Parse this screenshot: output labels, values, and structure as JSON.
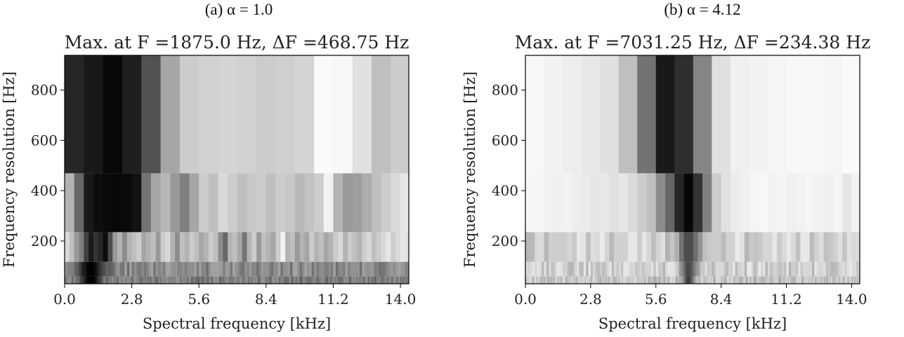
{
  "chart_data": [
    {
      "type": "heatmap",
      "panel_caption": "(a) α = 1.0",
      "title": "Max. at F =1875.0 Hz, ΔF =468.75 Hz",
      "xlabel": "Spectral frequency [kHz]",
      "ylabel": "Frequency resolution [Hz]",
      "xlim": [
        0,
        14.35
      ],
      "ylim": [
        30,
        938
      ],
      "x_ticks": [
        0.0,
        2.8,
        5.6,
        8.4,
        11.2,
        14.0
      ],
      "x_tick_labels": [
        "0.0",
        "2.8",
        "5.6",
        "8.4",
        "11.2",
        "14.0"
      ],
      "y_ticks": [
        200,
        400,
        600,
        800
      ],
      "y_tick_labels": [
        "200",
        "400",
        "600",
        "800"
      ],
      "colormap": "grayscale (dark = high)",
      "rows": [
        {
          "y_range": [
            469,
            938
          ],
          "bin_width_khz": 0.8,
          "values": [
            0.85,
            0.9,
            0.97,
            0.88,
            0.68,
            0.35,
            0.2,
            0.18,
            0.17,
            0.18,
            0.2,
            0.19,
            0.17,
            0.02,
            0.03,
            0.12,
            0.25,
            0.2
          ]
        },
        {
          "y_range": [
            235,
            469
          ],
          "bin_width_khz": 0.4,
          "values": [
            0.3,
            0.6,
            0.9,
            0.95,
            0.96,
            0.97,
            0.96,
            0.93,
            0.55,
            0.35,
            0.28,
            0.4,
            0.5,
            0.35,
            0.2,
            0.25,
            0.15,
            0.2,
            0.25,
            0.22,
            0.2,
            0.25,
            0.2,
            0.22,
            0.28,
            0.24,
            0.2,
            0.05,
            0.3,
            0.4,
            0.38,
            0.32,
            0.25,
            0.2,
            0.15,
            0.1
          ]
        },
        {
          "y_range": [
            117,
            235
          ],
          "bin_width_khz": 0.2,
          "values": [
            0.15,
            0.25,
            0.4,
            0.5,
            0.75,
            0.9,
            0.8,
            0.85,
            0.95,
            0.7,
            0.4,
            0.3,
            0.45,
            0.3,
            0.25,
            0.2,
            0.35,
            0.3,
            0.25,
            0.4,
            0.2,
            0.15,
            0.3,
            0.45,
            0.25,
            0.3,
            0.2,
            0.25,
            0.35,
            0.3,
            0.2,
            0.25,
            0.45,
            0.6,
            0.3,
            0.25,
            0.35,
            0.55,
            0.3,
            0.2,
            0.4,
            0.25,
            0.3,
            0.35,
            0.2,
            0.05,
            0.3,
            0.25,
            0.4,
            0.3,
            0.35,
            0.2,
            0.3,
            0.25,
            0.35,
            0.3,
            0.2,
            0.15,
            0.3,
            0.2,
            0.25,
            0.3,
            0.2,
            0.15,
            0.25,
            0.2,
            0.15,
            0.1,
            0.2,
            0.15,
            0.1,
            0.12
          ]
        },
        {
          "y_range": [
            59,
            117
          ],
          "bin_width_khz": 0.1,
          "pattern_peak_khz": 1.1,
          "peak_width_khz": 0.6,
          "background": 0.35
        },
        {
          "y_range": [
            30,
            59
          ],
          "bin_width_khz": 0.05,
          "pattern_peak_khz": 1.1,
          "peak_width_khz": 0.4,
          "background": 0.4
        }
      ]
    },
    {
      "type": "heatmap",
      "panel_caption": "(b) α = 4.12",
      "title": "Max. at F =7031.25 Hz, ΔF =234.38 Hz",
      "xlabel": "Spectral frequency [kHz]",
      "ylabel": "Frequency resolution [Hz]",
      "xlim": [
        0,
        14.35
      ],
      "ylim": [
        30,
        938
      ],
      "x_ticks": [
        0.0,
        2.8,
        5.6,
        8.4,
        11.2,
        14.0
      ],
      "x_tick_labels": [
        "0.0",
        "2.8",
        "5.6",
        "8.4",
        "11.2",
        "14.0"
      ],
      "y_ticks": [
        200,
        400,
        600,
        800
      ],
      "y_tick_labels": [
        "200",
        "400",
        "600",
        "800"
      ],
      "colormap": "grayscale (dark = high)",
      "rows": [
        {
          "y_range": [
            469,
            938
          ],
          "bin_width_khz": 0.8,
          "values": [
            0.03,
            0.05,
            0.07,
            0.09,
            0.12,
            0.25,
            0.55,
            0.9,
            0.82,
            0.48,
            0.12,
            0.06,
            0.05,
            0.04,
            0.03,
            0.03,
            0.04,
            0.02
          ]
        },
        {
          "y_range": [
            235,
            469
          ],
          "bin_width_khz": 0.4,
          "values": [
            0.03,
            0.04,
            0.05,
            0.06,
            0.05,
            0.07,
            0.08,
            0.1,
            0.09,
            0.12,
            0.1,
            0.14,
            0.2,
            0.25,
            0.45,
            0.6,
            0.85,
            0.97,
            0.8,
            0.5,
            0.2,
            0.12,
            0.08,
            0.06,
            0.04,
            0.03,
            0.05,
            0.04,
            0.06,
            0.05,
            0.04,
            0.05,
            0.06,
            0.04,
            0.1,
            0.05
          ]
        },
        {
          "y_range": [
            117,
            235
          ],
          "bin_width_khz": 0.2,
          "peak_khz": 7.0,
          "peak_width_khz": 0.5,
          "background": 0.07
        },
        {
          "y_range": [
            59,
            117
          ],
          "bin_width_khz": 0.1,
          "peak_khz": 7.0,
          "peak_width_khz": 0.35,
          "background": 0.08
        },
        {
          "y_range": [
            30,
            59
          ],
          "bin_width_khz": 0.05,
          "peak_khz": 7.0,
          "peak_width_khz": 0.25,
          "background": 0.12
        }
      ]
    }
  ]
}
